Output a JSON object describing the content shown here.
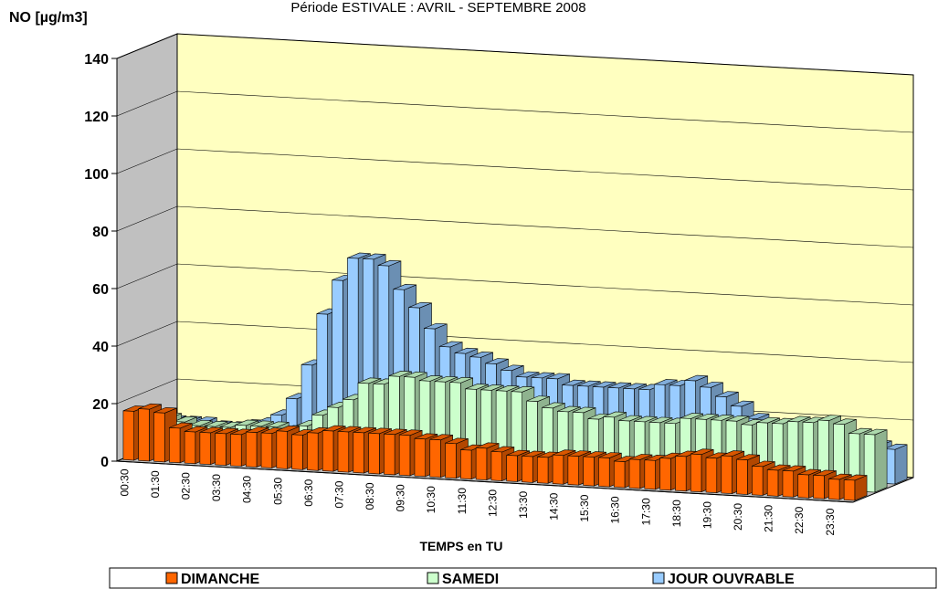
{
  "chart_data": {
    "type": "bar3d",
    "title": "Période ESTIVALE : AVRIL - SEPTEMBRE 2008",
    "y_label": "NO  [µg/m3]",
    "x_label": "TEMPS en TU",
    "categories": [
      "00:30",
      null,
      "01:30",
      null,
      "02:30",
      null,
      "03:30",
      null,
      "04:30",
      null,
      "05:30",
      null,
      "06:30",
      null,
      "07:30",
      null,
      "08:30",
      null,
      "09:30",
      null,
      "10:30",
      null,
      "11:30",
      null,
      "12:30",
      null,
      "13:30",
      null,
      "14:30",
      null,
      "15:30",
      null,
      "16:30",
      null,
      "17:30",
      null,
      "18:30",
      null,
      "19:30",
      null,
      "20:30",
      null,
      "21:30",
      null,
      "22:30",
      null,
      "23:30",
      null
    ],
    "series": [
      {
        "name": "DIMANCHE",
        "color": "#ff6600",
        "values": [
          17,
          18,
          17,
          12,
          11,
          11,
          11,
          11,
          12,
          12,
          13,
          12,
          13,
          14,
          14,
          14,
          14,
          14,
          14,
          13,
          13,
          12,
          10,
          11,
          10,
          9,
          9,
          9,
          10,
          10,
          10,
          10,
          9,
          10,
          10,
          11,
          12,
          13,
          12,
          13,
          12,
          10,
          9,
          9,
          8,
          8,
          7,
          7
        ]
      },
      {
        "name": "SAMEDI",
        "color": "#ccffcc",
        "values": [
          12,
          12,
          11,
          10,
          10,
          10,
          11,
          11,
          11,
          10,
          12,
          16,
          19,
          22,
          28,
          28,
          31,
          31,
          30,
          30,
          30,
          28,
          28,
          28,
          28,
          25,
          23,
          22,
          22,
          20,
          21,
          20,
          20,
          20,
          20,
          22,
          22,
          22,
          22,
          21,
          22,
          22,
          23,
          23,
          24,
          23,
          20,
          20
        ]
      },
      {
        "name": "JOUR OUVRABLE",
        "color": "#99ccff",
        "values": [
          8,
          8,
          8,
          7,
          7,
          8,
          9,
          12,
          18,
          30,
          48,
          60,
          68,
          68,
          66,
          58,
          52,
          45,
          39,
          37,
          36,
          34,
          32,
          30,
          30,
          30,
          28,
          28,
          28,
          28,
          28,
          28,
          30,
          30,
          32,
          30,
          27,
          24,
          20,
          17,
          16,
          15,
          15,
          15,
          15,
          14,
          13,
          12
        ]
      }
    ],
    "ylim": [
      0,
      140
    ],
    "yticks": [
      0,
      20,
      40,
      60,
      80,
      100,
      120,
      140
    ],
    "grid": true
  }
}
